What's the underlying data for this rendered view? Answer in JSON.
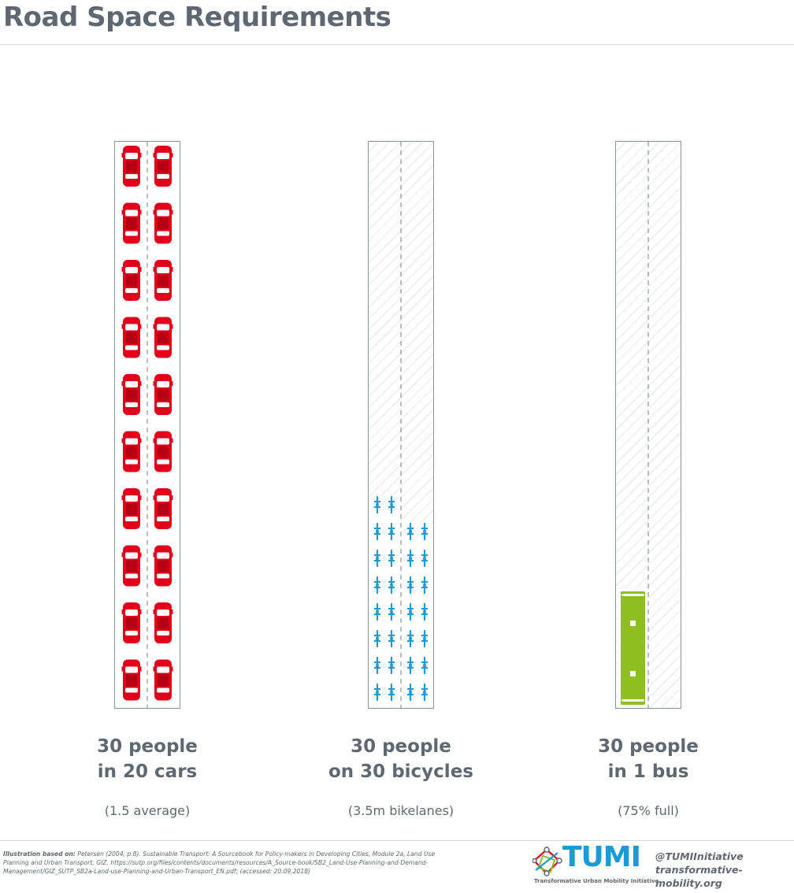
{
  "title": "Road Space Requirements",
  "roads": [
    {
      "id": "cars",
      "caption_line1": "30 people",
      "caption_line2": "in 20 cars",
      "note": "(1.5 average)",
      "vehicle": "car",
      "count": 20
    },
    {
      "id": "bicycles",
      "caption_line1": "30 people",
      "caption_line2": "on 30 bicycles",
      "note": "(3.5m bikelanes)",
      "vehicle": "bicycle",
      "count": 30
    },
    {
      "id": "bus",
      "caption_line1": "30 people",
      "caption_line2": "in 1 bus",
      "note": "(75% full)",
      "vehicle": "bus",
      "count": 1
    }
  ],
  "colors": {
    "car": "#e2001a",
    "bicycle": "#1a9ad6",
    "bus": "#8cbf1f",
    "text": "#5f6870",
    "hatch": "#c9cdd1"
  },
  "footnote": {
    "label": "Illustration based on:",
    "text": "Petersen (2004, p.8). Sustainable Transport: A Sourcebook for Policy-makers in Developing Cities, Module 2a, Land Use Planning and Urban Transport, GIZ. https://sutp.org/files/contents/documents/resources/A_Source-book/SB2_Land-Use-Planning-and-Demand-Management/GIZ_SUTP_SB2a-Land-use-Planning-and-Urban-Transport_EN.pdf; (accessed: 20.09.2018)"
  },
  "logo": {
    "name": "TUMI",
    "subtitle": "Transformative Urban Mobility Initiative",
    "icon": "network-node-icon"
  },
  "social": {
    "handle": "@TUMIInitiative",
    "website": "transformative-mobility.org"
  }
}
